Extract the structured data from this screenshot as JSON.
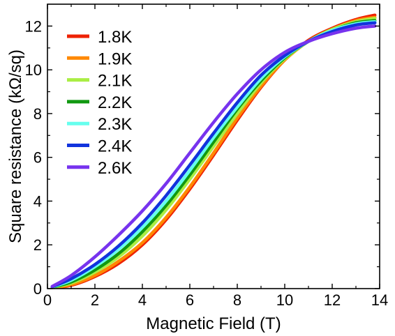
{
  "chart_data": {
    "type": "line",
    "xlabel": "Magnetic Field (T)",
    "ylabel": "Square resistance (kΩ/sq)",
    "xlim": [
      0,
      14
    ],
    "ylim": [
      0,
      13
    ],
    "xticks": [
      "0",
      "2",
      "4",
      "6",
      "8",
      "10",
      "12",
      "14"
    ],
    "yticks": [
      "0",
      "2",
      "4",
      "6",
      "8",
      "10",
      "12"
    ],
    "grid": false,
    "legend_position": "top-left",
    "series": [
      {
        "name": "1.8K",
        "color": "#ee2200",
        "x": [
          0.2,
          1,
          2,
          3,
          4,
          5,
          6,
          7,
          8,
          9,
          10,
          11,
          12,
          13,
          13.8
        ],
        "y": [
          0.05,
          0.15,
          0.55,
          1.15,
          2.0,
          3.15,
          4.55,
          6.1,
          7.7,
          9.2,
          10.45,
          11.35,
          11.9,
          12.3,
          12.5
        ]
      },
      {
        "name": "1.9K",
        "color": "#ff8800",
        "x": [
          0.2,
          1,
          2,
          3,
          4,
          5,
          6,
          7,
          8,
          9,
          10,
          11,
          12,
          13,
          13.8
        ],
        "y": [
          0.05,
          0.18,
          0.6,
          1.25,
          2.1,
          3.25,
          4.65,
          6.2,
          7.8,
          9.25,
          10.45,
          11.3,
          11.85,
          12.25,
          12.4
        ]
      },
      {
        "name": "2.1K",
        "color": "#aaee44",
        "x": [
          0.2,
          1,
          2,
          3,
          4,
          5,
          6,
          7,
          8,
          9,
          10,
          11,
          12,
          13,
          13.8
        ],
        "y": [
          0.06,
          0.25,
          0.75,
          1.45,
          2.4,
          3.6,
          5.0,
          6.5,
          8.0,
          9.4,
          10.5,
          11.3,
          11.85,
          12.2,
          12.35
        ]
      },
      {
        "name": "2.2K",
        "color": "#119911",
        "x": [
          0.2,
          1,
          2,
          3,
          4,
          5,
          6,
          7,
          8,
          9,
          10,
          11,
          12,
          13,
          13.8
        ],
        "y": [
          0.07,
          0.3,
          0.85,
          1.6,
          2.6,
          3.8,
          5.2,
          6.7,
          8.2,
          9.5,
          10.55,
          11.3,
          11.8,
          12.15,
          12.25
        ]
      },
      {
        "name": "2.3K",
        "color": "#66ffee",
        "x": [
          0.2,
          1,
          2,
          3,
          4,
          5,
          6,
          7,
          8,
          9,
          10,
          11,
          12,
          13,
          13.8
        ],
        "y": [
          0.08,
          0.38,
          1.0,
          1.8,
          2.8,
          4.0,
          5.4,
          6.9,
          8.3,
          9.6,
          10.6,
          11.3,
          11.8,
          12.1,
          12.2
        ]
      },
      {
        "name": "2.4K",
        "color": "#1133dd",
        "x": [
          0.2,
          1,
          2,
          3,
          4,
          5,
          6,
          7,
          8,
          9,
          10,
          11,
          12,
          13,
          13.8
        ],
        "y": [
          0.09,
          0.45,
          1.1,
          1.95,
          3.0,
          4.25,
          5.65,
          7.1,
          8.5,
          9.75,
          10.65,
          11.3,
          11.75,
          12.05,
          12.15
        ]
      },
      {
        "name": "2.6K",
        "color": "#7733ee",
        "x": [
          0.2,
          1,
          2,
          3,
          4,
          5,
          6,
          7,
          8,
          9,
          10,
          11,
          12,
          13,
          13.8
        ],
        "y": [
          0.1,
          0.6,
          1.45,
          2.45,
          3.55,
          4.8,
          6.2,
          7.6,
          8.9,
          10.0,
          10.8,
          11.3,
          11.65,
          11.9,
          12.0
        ]
      }
    ]
  }
}
